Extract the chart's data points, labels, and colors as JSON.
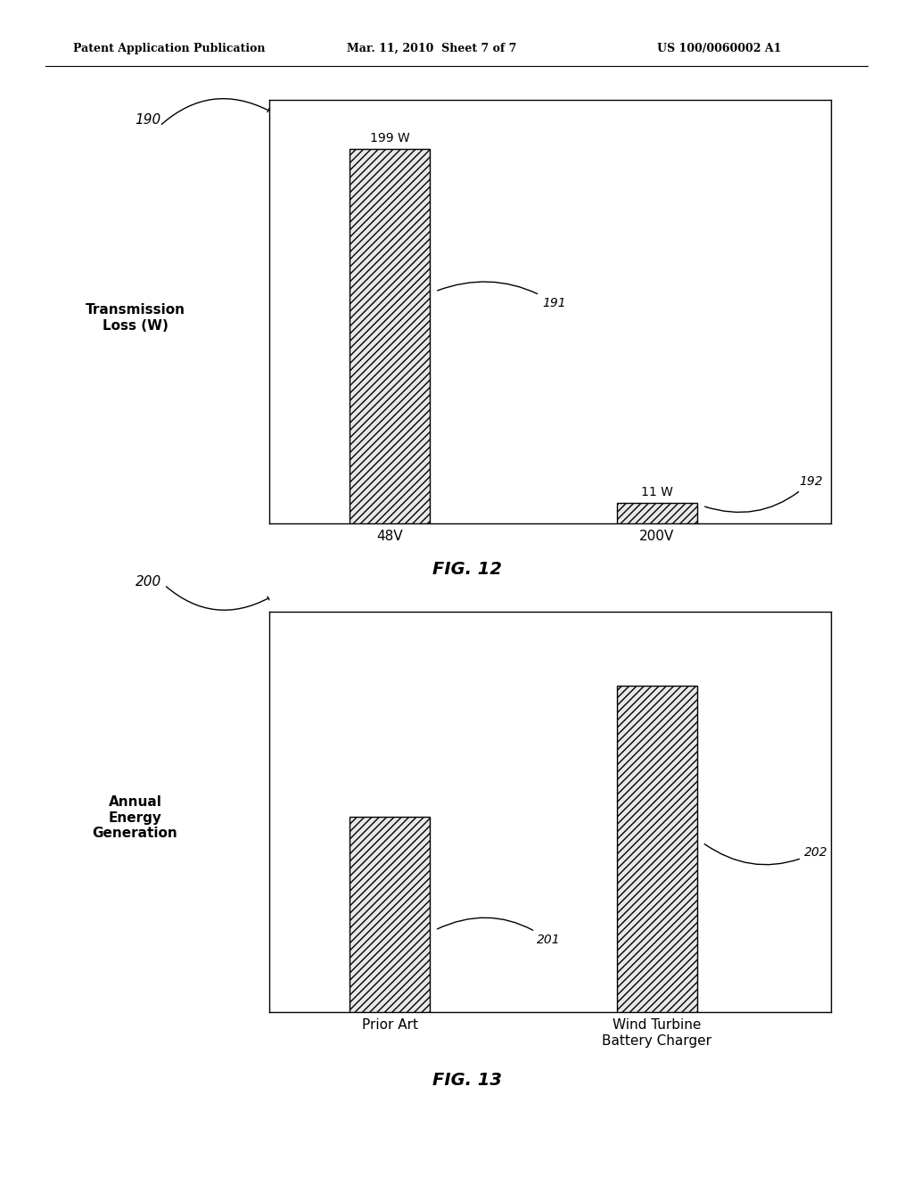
{
  "page_title_left": "Patent Application Publication",
  "page_title_mid": "Mar. 11, 2010  Sheet 7 of 7",
  "page_title_right": "US 100/0060002 A1",
  "fig12": {
    "label": "190",
    "categories": [
      "48V",
      "200V"
    ],
    "values": [
      199,
      11
    ],
    "bar_labels": [
      "199 W",
      "11 W"
    ],
    "ylabel": "Transmission\nLoss (W)",
    "ref191": "191",
    "ref192": "192",
    "fig_title": "FIG. 12"
  },
  "fig13": {
    "label": "200",
    "categories": [
      "Prior Art",
      "Wind Turbine\nBattery Charger"
    ],
    "values": [
      0.45,
      0.75
    ],
    "ylabel": "Annual\nEnergy\nGeneration",
    "ref201": "201",
    "ref202": "202",
    "fig_title": "FIG. 13"
  },
  "background_color": "#ffffff",
  "bar_edge_color": "#000000",
  "bar_face_color": "#e8e8e8",
  "hatch_pattern": "////",
  "text_color": "#000000",
  "header_fontsize": 9,
  "label_fontsize": 11,
  "ref_fontsize": 10,
  "caption_fontsize": 14
}
